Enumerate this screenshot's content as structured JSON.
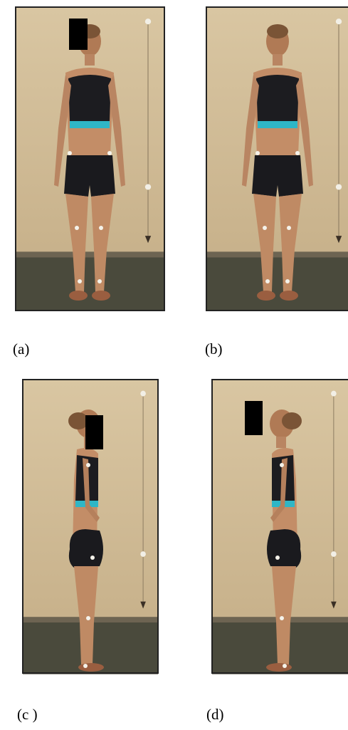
{
  "panels": [
    {
      "label": "(a)"
    },
    {
      "label": "(b)"
    },
    {
      "label": "(c )"
    },
    {
      "label": "(d)"
    }
  ]
}
